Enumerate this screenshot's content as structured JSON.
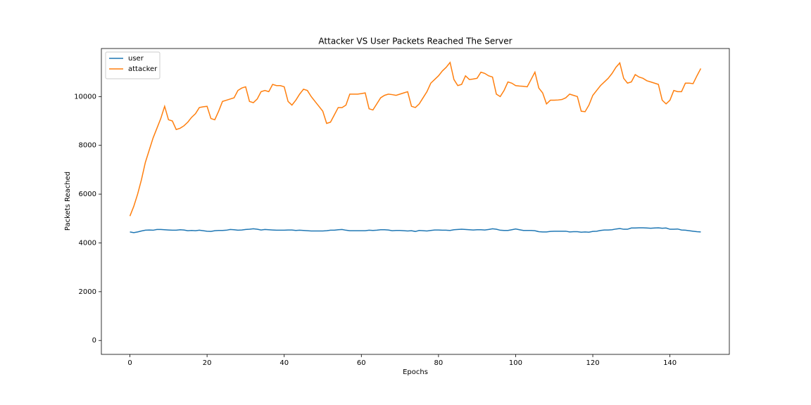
{
  "chart_data": {
    "type": "line",
    "title": "Attacker VS User Packets Reached The Server",
    "x_label": "Epochs",
    "y_label": "Packets Reached",
    "x": [
      0,
      1,
      2,
      3,
      4,
      5,
      6,
      7,
      8,
      9,
      10,
      11,
      12,
      13,
      14,
      15,
      16,
      17,
      18,
      19,
      20,
      21,
      22,
      23,
      24,
      25,
      26,
      27,
      28,
      29,
      30,
      31,
      32,
      33,
      34,
      35,
      36,
      37,
      38,
      39,
      40,
      41,
      42,
      43,
      44,
      45,
      46,
      47,
      48,
      49,
      50,
      51,
      52,
      53,
      54,
      55,
      56,
      57,
      58,
      59,
      60,
      61,
      62,
      63,
      64,
      65,
      66,
      67,
      68,
      69,
      70,
      71,
      72,
      73,
      74,
      75,
      76,
      77,
      78,
      79,
      80,
      81,
      82,
      83,
      84,
      85,
      86,
      87,
      88,
      89,
      90,
      91,
      92,
      93,
      94,
      95,
      96,
      97,
      98,
      99,
      100,
      101,
      102,
      103,
      104,
      105,
      106,
      107,
      108,
      109,
      110,
      111,
      112,
      113,
      114,
      115,
      116,
      117,
      118,
      119,
      120,
      121,
      122,
      123,
      124,
      125,
      126,
      127,
      128,
      129,
      130,
      131,
      132,
      133,
      134,
      135,
      136,
      137,
      138,
      139,
      140,
      141,
      142,
      143,
      144,
      145,
      146,
      147,
      148
    ],
    "series": [
      {
        "name": "user",
        "color": "#1f77b4",
        "values": [
          4450,
          4420,
          4450,
          4490,
          4520,
          4530,
          4520,
          4550,
          4550,
          4540,
          4530,
          4520,
          4520,
          4540,
          4530,
          4500,
          4510,
          4500,
          4520,
          4500,
          4480,
          4470,
          4500,
          4510,
          4510,
          4520,
          4550,
          4540,
          4520,
          4530,
          4550,
          4560,
          4580,
          4560,
          4530,
          4550,
          4540,
          4530,
          4520,
          4520,
          4520,
          4530,
          4530,
          4510,
          4520,
          4510,
          4500,
          4490,
          4490,
          4490,
          4490,
          4500,
          4520,
          4520,
          4540,
          4550,
          4520,
          4500,
          4500,
          4500,
          4500,
          4500,
          4520,
          4510,
          4520,
          4540,
          4540,
          4530,
          4500,
          4510,
          4510,
          4500,
          4490,
          4500,
          4470,
          4510,
          4500,
          4490,
          4510,
          4530,
          4530,
          4520,
          4520,
          4510,
          4540,
          4550,
          4560,
          4550,
          4540,
          4530,
          4540,
          4540,
          4530,
          4550,
          4580,
          4560,
          4520,
          4510,
          4510,
          4540,
          4570,
          4540,
          4510,
          4510,
          4510,
          4500,
          4460,
          4450,
          4450,
          4470,
          4480,
          4480,
          4480,
          4480,
          4450,
          4460,
          4460,
          4440,
          4450,
          4440,
          4470,
          4480,
          4510,
          4530,
          4530,
          4540,
          4570,
          4590,
          4560,
          4560,
          4610,
          4610,
          4620,
          4620,
          4610,
          4600,
          4610,
          4620,
          4600,
          4610,
          4560,
          4560,
          4570,
          4530,
          4520,
          4500,
          4480,
          4460,
          4450
        ]
      },
      {
        "name": "attacker",
        "color": "#ff7f0e",
        "values": [
          5100,
          5500,
          6000,
          6600,
          7300,
          7800,
          8300,
          8700,
          9100,
          9600,
          9050,
          9000,
          8650,
          8700,
          8800,
          8950,
          9150,
          9300,
          9550,
          9580,
          9600,
          9100,
          9050,
          9400,
          9800,
          9850,
          9900,
          9950,
          10250,
          10350,
          10400,
          9800,
          9750,
          9900,
          10200,
          10250,
          10200,
          10500,
          10450,
          10450,
          10400,
          9800,
          9650,
          9850,
          10100,
          10300,
          10250,
          10000,
          9800,
          9600,
          9400,
          8900,
          8950,
          9250,
          9550,
          9550,
          9650,
          10100,
          10100,
          10100,
          10120,
          10150,
          9500,
          9450,
          9700,
          9950,
          10050,
          10100,
          10080,
          10050,
          10100,
          10150,
          10200,
          9600,
          9550,
          9700,
          9950,
          10200,
          10550,
          10700,
          10850,
          11050,
          11200,
          11400,
          10700,
          10450,
          10500,
          10850,
          10700,
          10720,
          10750,
          11000,
          10950,
          10850,
          10800,
          10100,
          10000,
          10250,
          10600,
          10550,
          10450,
          10430,
          10420,
          10400,
          10700,
          11000,
          10350,
          10150,
          9700,
          9850,
          9850,
          9860,
          9880,
          9950,
          10100,
          10050,
          10000,
          9400,
          9380,
          9650,
          10050,
          10250,
          10450,
          10600,
          10750,
          10950,
          11200,
          11380,
          10750,
          10550,
          10600,
          10900,
          10800,
          10750,
          10650,
          10600,
          10550,
          10500,
          9850,
          9700,
          9850,
          10250,
          10200,
          10200,
          10550,
          10550,
          10530,
          10850,
          11150
        ]
      }
    ],
    "xlim": [
      -7.4,
      155.4
    ],
    "ylim": [
      -570,
      11970
    ],
    "xticks": [
      0,
      20,
      40,
      60,
      80,
      100,
      120,
      140
    ],
    "yticks": [
      0,
      2000,
      4000,
      6000,
      8000,
      10000
    ],
    "legend": "upper left"
  }
}
